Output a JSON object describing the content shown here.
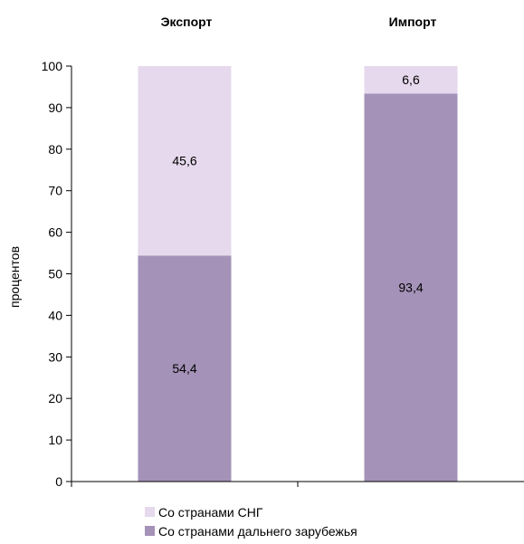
{
  "chart_data": {
    "type": "bar",
    "stacked": true,
    "categories": [
      "Экспорт",
      "Импорт"
    ],
    "category_titles_position": "top",
    "series": [
      {
        "name": "Со странами дальнего зарубежья",
        "values": [
          54.4,
          93.4
        ],
        "labels": [
          "54,4",
          "93,4"
        ],
        "color": "#a592b8"
      },
      {
        "name": "Со странами СНГ",
        "values": [
          45.6,
          6.6
        ],
        "labels": [
          "45,6",
          "6,6"
        ],
        "color": "#e6d9ed"
      }
    ],
    "ylabel": "процентов",
    "ylim": [
      0,
      100
    ],
    "yticks": [
      0,
      10,
      20,
      30,
      40,
      50,
      60,
      70,
      80,
      90,
      100
    ],
    "grid": false,
    "legend": {
      "placement": "bottom-left",
      "order": [
        "Со странами СНГ",
        "Со странами дальнего зарубежья"
      ]
    }
  }
}
